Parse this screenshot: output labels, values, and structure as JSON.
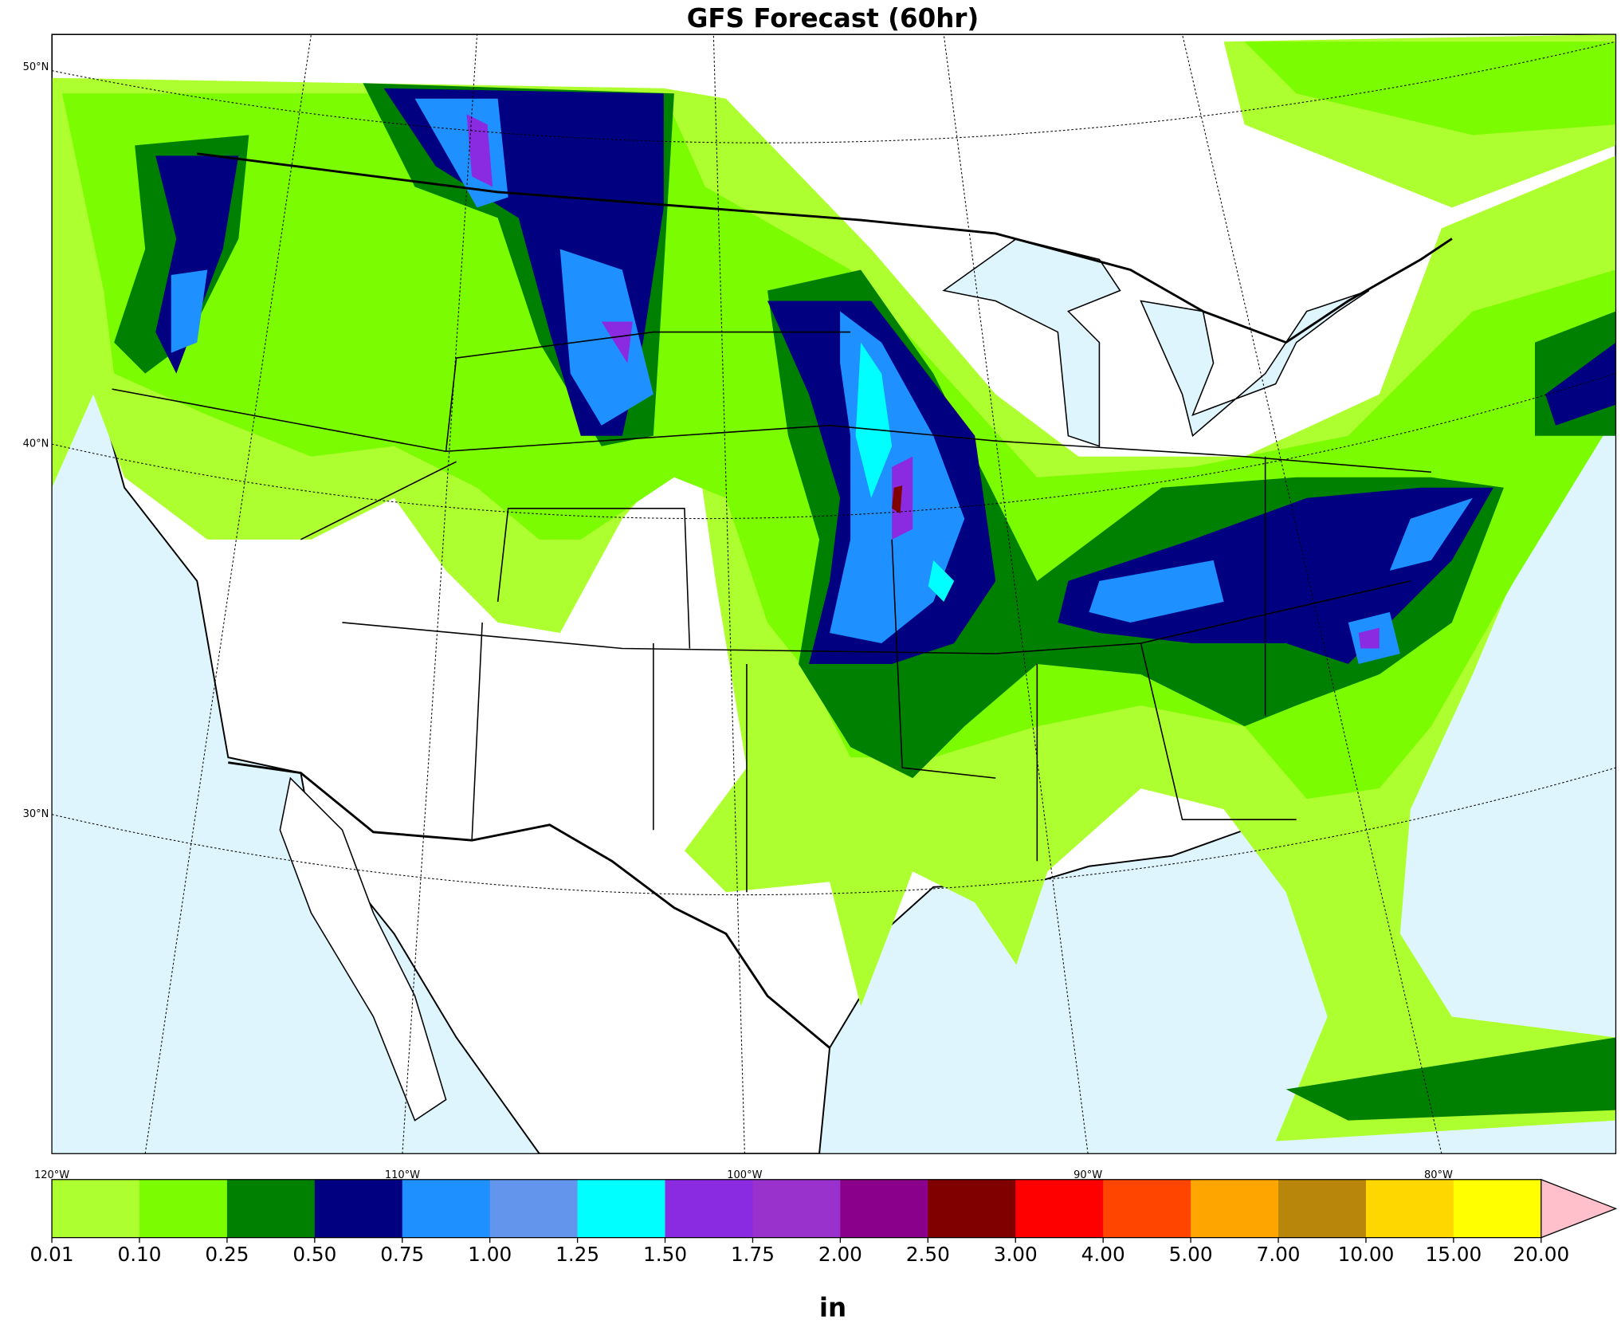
{
  "title": "GFS Forecast (60hr)",
  "map": {
    "lat_labels": [
      "50°N",
      "40°N",
      "30°N"
    ],
    "lon_labels": [
      "120°W",
      "110°W",
      "100°W",
      "90°W",
      "80°W"
    ]
  },
  "colorbar": {
    "label": "in",
    "ticks": [
      {
        "value": 0.01,
        "label": "0.01"
      },
      {
        "value": 0.1,
        "label": "0.10"
      },
      {
        "value": 0.25,
        "label": "0.25"
      },
      {
        "value": 0.5,
        "label": "0.50"
      },
      {
        "value": 0.75,
        "label": "0.75"
      },
      {
        "value": 1,
        "label": "1.00"
      },
      {
        "value": 1.25,
        "label": "1.25"
      },
      {
        "value": 1.5,
        "label": "1.50"
      },
      {
        "value": 1.75,
        "label": "1.75"
      },
      {
        "value": 2,
        "label": "2.00"
      },
      {
        "value": 2.5,
        "label": "2.50"
      },
      {
        "value": 3,
        "label": "3.00"
      },
      {
        "value": 4,
        "label": "4.00"
      },
      {
        "value": 5,
        "label": "5.00"
      },
      {
        "value": 7,
        "label": "7.00"
      },
      {
        "value": 10,
        "label": "10.00"
      },
      {
        "value": 15,
        "label": "15.00"
      },
      {
        "value": 20,
        "label": "20.00"
      }
    ],
    "colors": [
      "#adff2f",
      "#7cfc00",
      "#008000",
      "#000080",
      "#1e90ff",
      "#6495ed",
      "#00ffff",
      "#8a2be2",
      "#9932cc",
      "#8b008b",
      "#800000",
      "#ff0000",
      "#ff4500",
      "#ffa500",
      "#b8860b",
      "#ffd700",
      "#ffff00"
    ],
    "extend_color": "#ffc0cb"
  }
}
